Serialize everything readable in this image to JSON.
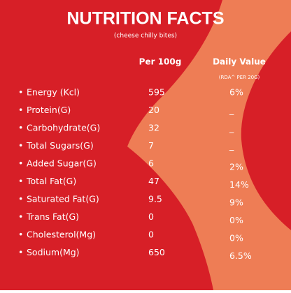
{
  "header": {
    "title": "NUTRITION FACTS",
    "subtitle": "(cheese chilly bites)"
  },
  "table": {
    "columns": [
      "Per 100g",
      "Daily Value"
    ],
    "column_note": "(RDA^ PER 20G)",
    "bullet": "•",
    "rows": [
      [
        "Energy (Kcl)",
        "595",
        "6%"
      ],
      [
        "Protein(G)",
        "20",
        "_"
      ],
      [
        "Carbohydrate(G)",
        "32",
        "_"
      ],
      [
        "Total Sugars(G)",
        "7",
        "_"
      ],
      [
        "Added Sugar(G)",
        "6",
        "2%"
      ],
      [
        "Total Fat(G)",
        "47",
        "14%"
      ],
      [
        "Saturated Fat(G)",
        "9.5",
        "9%"
      ],
      [
        "Trans Fat(G)",
        "0",
        "0%"
      ],
      [
        "Cholesterol(Mg)",
        "0",
        "0%"
      ],
      [
        "Sodium(Mg)",
        "650",
        "6.5%"
      ]
    ]
  }
}
